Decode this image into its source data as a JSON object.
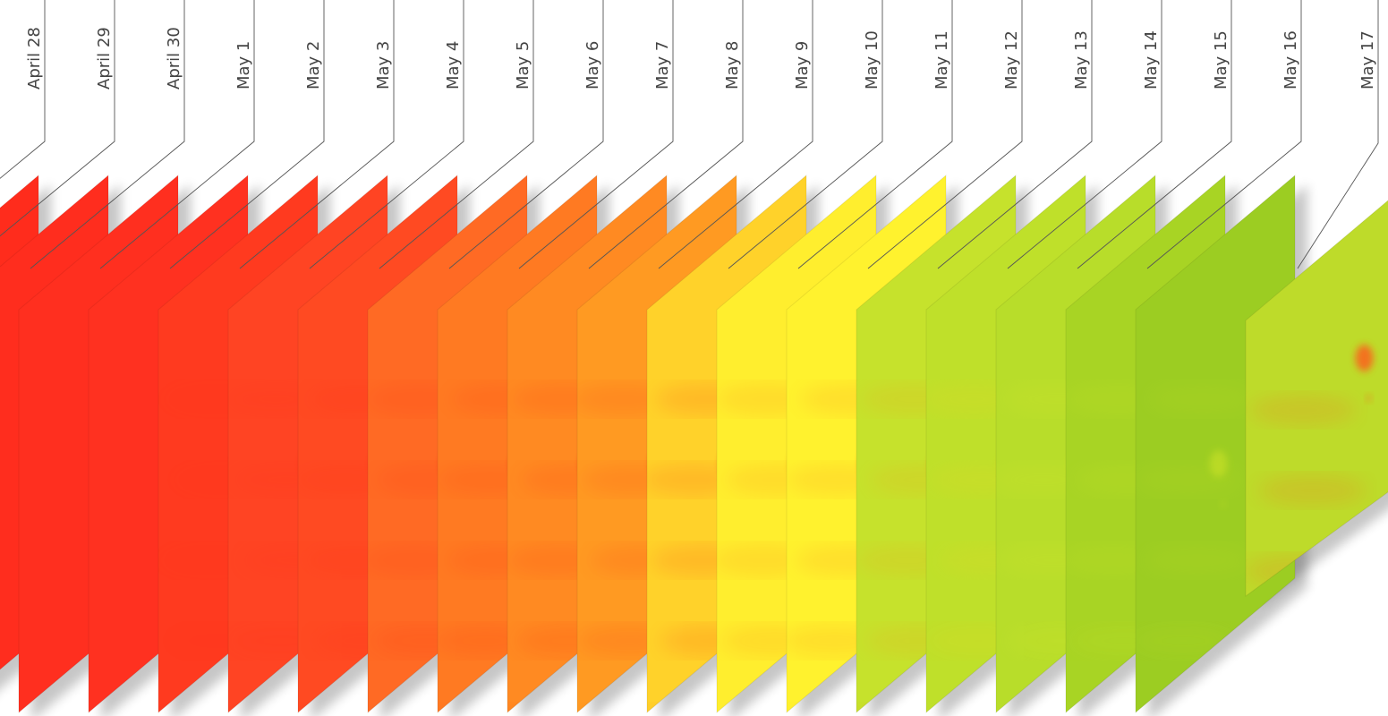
{
  "frames": [
    {
      "label": "April 28",
      "base": "#ff2c1c",
      "hot": "#ff3a1a",
      "spot_strength": 0.0
    },
    {
      "label": "April 29",
      "base": "#ff2d1e",
      "hot": "#ff3a1a",
      "spot_strength": 0.0
    },
    {
      "label": "April 30",
      "base": "#ff2f1f",
      "hot": "#ff3a1a",
      "spot_strength": 0.0
    },
    {
      "label": "May 1",
      "base": "#ff3120",
      "hot": "#ff3a1a",
      "spot_strength": 0.0
    },
    {
      "label": "May 2",
      "base": "#ff3a1f",
      "hot": "#ff2a10",
      "spot_strength": 0.1
    },
    {
      "label": "May 3",
      "base": "#ff4423",
      "hot": "#ff2a14",
      "spot_strength": 0.55
    },
    {
      "label": "May 4",
      "base": "#ff4a22",
      "hot": "#ff2612",
      "spot_strength": 0.65
    },
    {
      "label": "May 5",
      "base": "#ff6a24",
      "hot": "#ff2a10",
      "spot_strength": 0.75
    },
    {
      "label": "May 6",
      "base": "#ff7a22",
      "hot": "#ff2c10",
      "spot_strength": 0.75
    },
    {
      "label": "May 7",
      "base": "#ff8a22",
      "hot": "#ff2c10",
      "spot_strength": 0.8
    },
    {
      "label": "May 8",
      "base": "#ff9a22",
      "hot": "#ff2e12",
      "spot_strength": 0.8
    },
    {
      "label": "May 9",
      "base": "#ffd22a",
      "hot": "#ff3010",
      "spot_strength": 0.8
    },
    {
      "label": "May 10",
      "base": "#ffee2e",
      "hot": "#ff6a14",
      "spot_strength": 0.75
    },
    {
      "label": "May 11",
      "base": "#fff22e",
      "hot": "#ff6a1a",
      "spot_strength": 0.75
    },
    {
      "label": "May 12",
      "base": "#c6e22c",
      "hot": "#ff8a18",
      "spot_strength": 0.7
    },
    {
      "label": "May 13",
      "base": "#bfe02a",
      "hot": "#ffcf22",
      "spot_strength": 0.6
    },
    {
      "label": "May 14",
      "base": "#b8dd2a",
      "hot": "#f2f02e",
      "spot_strength": 0.5
    },
    {
      "label": "May 15",
      "base": "#a8d424",
      "hot": "#eaf02c",
      "spot_strength": 0.45
    },
    {
      "label": "May 16",
      "base": "#9ccd22",
      "hot": "#e6ee2a",
      "spot_strength": 0.4
    },
    {
      "label": "May 17",
      "base": "#bedb2a",
      "hot": "#ff5a1a",
      "spot_strength": 0.85
    }
  ],
  "colors": {
    "leader_line": "#555555",
    "label_text": "#444444",
    "shadow": "#000000"
  }
}
